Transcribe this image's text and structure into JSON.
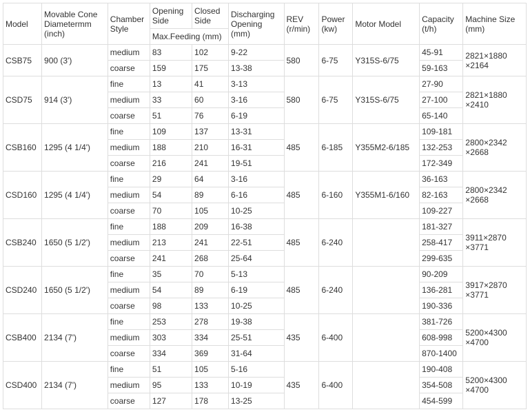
{
  "headers": {
    "model": "Model",
    "diameter": "Movable Cone Diametermm (inch)",
    "chamber": "Chamber Style",
    "opening": "Opening Side",
    "closed": "Closed Side",
    "maxfeed": "Max.Feeding (mm)",
    "discharge": "Discharging Opening (mm)",
    "rev": "REV (r/min)",
    "power": "Power (kw)",
    "motor": "Motor Model",
    "capacity": "Capacity (t/h)",
    "size": "Machine Size (mm)"
  },
  "groups": [
    {
      "model": "CSB75",
      "diameter": "900 (3')",
      "rev": "580",
      "power": "6-75",
      "motor": "Y315S-6/75",
      "size": "2821×1880 ×2164",
      "rows": [
        {
          "chamber": "medium",
          "opening": "83",
          "closed": "102",
          "discharge": "9-22",
          "capacity": "45-91"
        },
        {
          "chamber": "coarse",
          "opening": "159",
          "closed": "175",
          "discharge": "13-38",
          "capacity": "59-163"
        }
      ]
    },
    {
      "model": "CSD75",
      "diameter": "914 (3')",
      "rev": "580",
      "power": "6-75",
      "motor": "Y315S-6/75",
      "size": "2821×1880 ×2410",
      "rows": [
        {
          "chamber": "fine",
          "opening": "13",
          "closed": "41",
          "discharge": "3-13",
          "capacity": "27-90"
        },
        {
          "chamber": "medium",
          "opening": "33",
          "closed": "60",
          "discharge": "3-16",
          "capacity": "27-100"
        },
        {
          "chamber": "coarse",
          "opening": "51",
          "closed": "76",
          "discharge": "6-19",
          "capacity": "65-140"
        }
      ]
    },
    {
      "model": "CSB160",
      "diameter": "1295 (4 1/4')",
      "rev": "485",
      "power": "6-185",
      "motor": "Y355M2-6/185",
      "size": "2800×2342 ×2668",
      "rows": [
        {
          "chamber": "fine",
          "opening": "109",
          "closed": "137",
          "discharge": "13-31",
          "capacity": "109-181"
        },
        {
          "chamber": "medium",
          "opening": "188",
          "closed": "210",
          "discharge": "16-31",
          "capacity": "132-253"
        },
        {
          "chamber": "coarse",
          "opening": "216",
          "closed": "241",
          "discharge": "19-51",
          "capacity": "172-349"
        }
      ]
    },
    {
      "model": "CSD160",
      "diameter": "1295 (4 1/4')",
      "rev": "485",
      "power": "6-160",
      "motor": "Y355M1-6/160",
      "size": "2800×2342 ×2668",
      "rows": [
        {
          "chamber": "fine",
          "opening": "29",
          "closed": "64",
          "discharge": "3-16",
          "capacity": "36-163"
        },
        {
          "chamber": "medium",
          "opening": "54",
          "closed": "89",
          "discharge": "6-16",
          "capacity": "82-163"
        },
        {
          "chamber": "coarse",
          "opening": "70",
          "closed": "105",
          "discharge": "10-25",
          "capacity": "109-227"
        }
      ]
    },
    {
      "model": "CSB240",
      "diameter": "1650 (5 1/2')",
      "rev": "485",
      "power": "6-240",
      "motor": "",
      "size": "3911×2870 ×3771",
      "rows": [
        {
          "chamber": "fine",
          "opening": "188",
          "closed": "209",
          "discharge": "16-38",
          "capacity": "181-327"
        },
        {
          "chamber": "medium",
          "opening": "213",
          "closed": "241",
          "discharge": "22-51",
          "capacity": "258-417"
        },
        {
          "chamber": "coarse",
          "opening": "241",
          "closed": "268",
          "discharge": "25-64",
          "capacity": "299-635"
        }
      ]
    },
    {
      "model": "CSD240",
      "diameter": "1650 (5 1/2')",
      "rev": "485",
      "power": "6-240",
      "motor": "",
      "size": "3917×2870 ×3771",
      "rows": [
        {
          "chamber": "fine",
          "opening": "35",
          "closed": "70",
          "discharge": "5-13",
          "capacity": "90-209"
        },
        {
          "chamber": "medium",
          "opening": "54",
          "closed": "89",
          "discharge": "6-19",
          "capacity": "136-281"
        },
        {
          "chamber": "coarse",
          "opening": "98",
          "closed": "133",
          "discharge": "10-25",
          "capacity": "190-336"
        }
      ]
    },
    {
      "model": "CSB400",
      "diameter": "2134 (7')",
      "rev": "435",
      "power": "6-400",
      "motor": "",
      "size": "5200×4300 ×4700",
      "rows": [
        {
          "chamber": "fine",
          "opening": "253",
          "closed": "278",
          "discharge": "19-38",
          "capacity": "381-726"
        },
        {
          "chamber": "medium",
          "opening": "303",
          "closed": "334",
          "discharge": "25-51",
          "capacity": "608-998"
        },
        {
          "chamber": "coarse",
          "opening": "334",
          "closed": "369",
          "discharge": "31-64",
          "capacity": "870-1400"
        }
      ]
    },
    {
      "model": "CSD400",
      "diameter": "2134 (7')",
      "rev": "435",
      "power": "6-400",
      "motor": "",
      "size": "5200×4300 ×4700",
      "rows": [
        {
          "chamber": "fine",
          "opening": "51",
          "closed": "105",
          "discharge": "5-16",
          "capacity": "190-408"
        },
        {
          "chamber": "medium",
          "opening": "95",
          "closed": "133",
          "discharge": "10-19",
          "capacity": "354-508"
        },
        {
          "chamber": "coarse",
          "opening": "127",
          "closed": "178",
          "discharge": "13-25",
          "capacity": "454-599"
        }
      ]
    }
  ]
}
